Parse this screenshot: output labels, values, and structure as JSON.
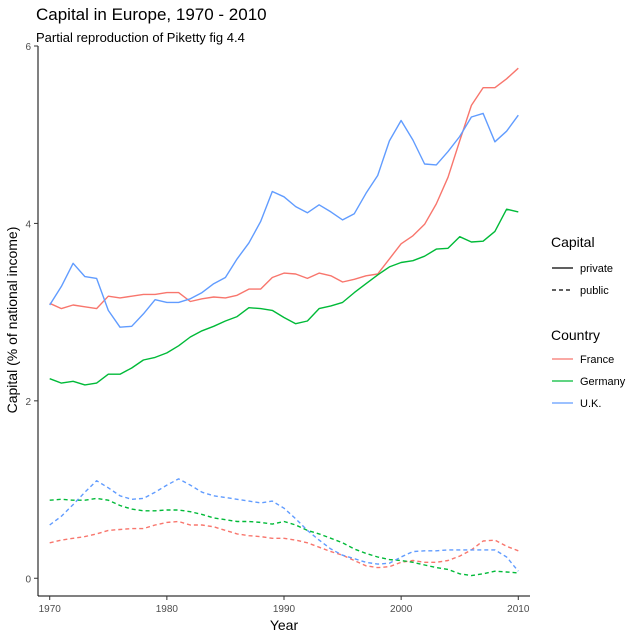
{
  "chart_data": {
    "type": "line",
    "title": "Capital in Europe, 1970 - 2010",
    "subtitle": "Partial reproduction of Piketty fig 4.4",
    "xlabel": "Year",
    "ylabel": "Capital (% of national income)",
    "xlim": [
      1969,
      2011
    ],
    "ylim": [
      -0.2,
      6.0
    ],
    "x_ticks": [
      1970,
      1980,
      1990,
      2000,
      2010
    ],
    "y_ticks": [
      0,
      2,
      4,
      6
    ],
    "grid": false,
    "legend_position": "right",
    "legend": {
      "capital_title": "Capital",
      "capital_entries": [
        {
          "label": "private",
          "linetype": "solid"
        },
        {
          "label": "public",
          "linetype": "dashed"
        }
      ],
      "country_title": "Country",
      "country_entries": [
        {
          "label": "France",
          "color": "#F8766D"
        },
        {
          "label": "Germany",
          "color": "#00BA38"
        },
        {
          "label": "U.K.",
          "color": "#619CFF"
        }
      ]
    },
    "x": [
      1970,
      1971,
      1972,
      1973,
      1974,
      1975,
      1976,
      1977,
      1978,
      1979,
      1980,
      1981,
      1982,
      1983,
      1984,
      1985,
      1986,
      1987,
      1988,
      1989,
      1990,
      1991,
      1992,
      1993,
      1994,
      1995,
      1996,
      1997,
      1998,
      1999,
      2000,
      2001,
      2002,
      2003,
      2004,
      2005,
      2006,
      2007,
      2008,
      2009,
      2010
    ],
    "series": [
      {
        "name": "France",
        "capital": "private",
        "color": "#F8766D",
        "dash": "solid",
        "values": [
          3.1,
          3.04,
          3.08,
          3.06,
          3.04,
          3.18,
          3.16,
          3.18,
          3.2,
          3.2,
          3.22,
          3.22,
          3.12,
          3.15,
          3.17,
          3.16,
          3.19,
          3.26,
          3.26,
          3.39,
          3.44,
          3.43,
          3.38,
          3.44,
          3.41,
          3.34,
          3.37,
          3.41,
          3.43,
          3.6,
          3.77,
          3.86,
          3.99,
          4.22,
          4.52,
          4.93,
          5.33,
          5.53,
          5.53,
          5.63,
          5.75
        ]
      },
      {
        "name": "Germany",
        "capital": "private",
        "color": "#00BA38",
        "dash": "solid",
        "values": [
          2.25,
          2.2,
          2.22,
          2.18,
          2.2,
          2.3,
          2.3,
          2.37,
          2.46,
          2.49,
          2.54,
          2.62,
          2.72,
          2.79,
          2.84,
          2.9,
          2.95,
          3.05,
          3.04,
          3.02,
          2.94,
          2.87,
          2.9,
          3.04,
          3.07,
          3.11,
          3.22,
          3.32,
          3.42,
          3.51,
          3.56,
          3.58,
          3.63,
          3.71,
          3.72,
          3.85,
          3.79,
          3.8,
          3.91,
          4.16,
          4.13
        ]
      },
      {
        "name": "U.K.",
        "capital": "private",
        "color": "#619CFF",
        "dash": "solid",
        "values": [
          3.08,
          3.29,
          3.55,
          3.4,
          3.38,
          3.02,
          2.83,
          2.84,
          2.98,
          3.14,
          3.11,
          3.11,
          3.15,
          3.22,
          3.32,
          3.39,
          3.6,
          3.78,
          4.02,
          4.36,
          4.3,
          4.19,
          4.12,
          4.21,
          4.13,
          4.04,
          4.11,
          4.34,
          4.54,
          4.93,
          5.16,
          4.94,
          4.67,
          4.66,
          4.81,
          4.98,
          5.2,
          5.24,
          4.92,
          5.04,
          5.22
        ]
      },
      {
        "name": "France",
        "capital": "public",
        "color": "#F8766D",
        "dash": "dashed",
        "values": [
          0.4,
          0.43,
          0.45,
          0.47,
          0.5,
          0.54,
          0.55,
          0.56,
          0.56,
          0.6,
          0.63,
          0.64,
          0.6,
          0.6,
          0.58,
          0.54,
          0.5,
          0.48,
          0.47,
          0.45,
          0.45,
          0.43,
          0.4,
          0.35,
          0.3,
          0.26,
          0.2,
          0.14,
          0.12,
          0.13,
          0.18,
          0.2,
          0.18,
          0.18,
          0.2,
          0.25,
          0.32,
          0.42,
          0.43,
          0.36,
          0.31
        ]
      },
      {
        "name": "Germany",
        "capital": "public",
        "color": "#00BA38",
        "dash": "dashed",
        "values": [
          0.88,
          0.89,
          0.88,
          0.88,
          0.9,
          0.88,
          0.82,
          0.78,
          0.76,
          0.76,
          0.77,
          0.77,
          0.75,
          0.72,
          0.68,
          0.66,
          0.64,
          0.64,
          0.63,
          0.61,
          0.64,
          0.6,
          0.54,
          0.5,
          0.45,
          0.4,
          0.33,
          0.28,
          0.24,
          0.21,
          0.2,
          0.18,
          0.15,
          0.12,
          0.1,
          0.05,
          0.03,
          0.05,
          0.08,
          0.07,
          0.06
        ]
      },
      {
        "name": "U.K.",
        "capital": "public",
        "color": "#619CFF",
        "dash": "dashed",
        "values": [
          0.6,
          0.7,
          0.83,
          0.97,
          1.1,
          1.02,
          0.93,
          0.89,
          0.9,
          0.97,
          1.05,
          1.12,
          1.05,
          0.97,
          0.93,
          0.91,
          0.89,
          0.87,
          0.85,
          0.87,
          0.79,
          0.67,
          0.54,
          0.43,
          0.33,
          0.26,
          0.22,
          0.18,
          0.16,
          0.17,
          0.24,
          0.3,
          0.31,
          0.31,
          0.32,
          0.32,
          0.32,
          0.32,
          0.32,
          0.24,
          0.08
        ]
      }
    ]
  }
}
